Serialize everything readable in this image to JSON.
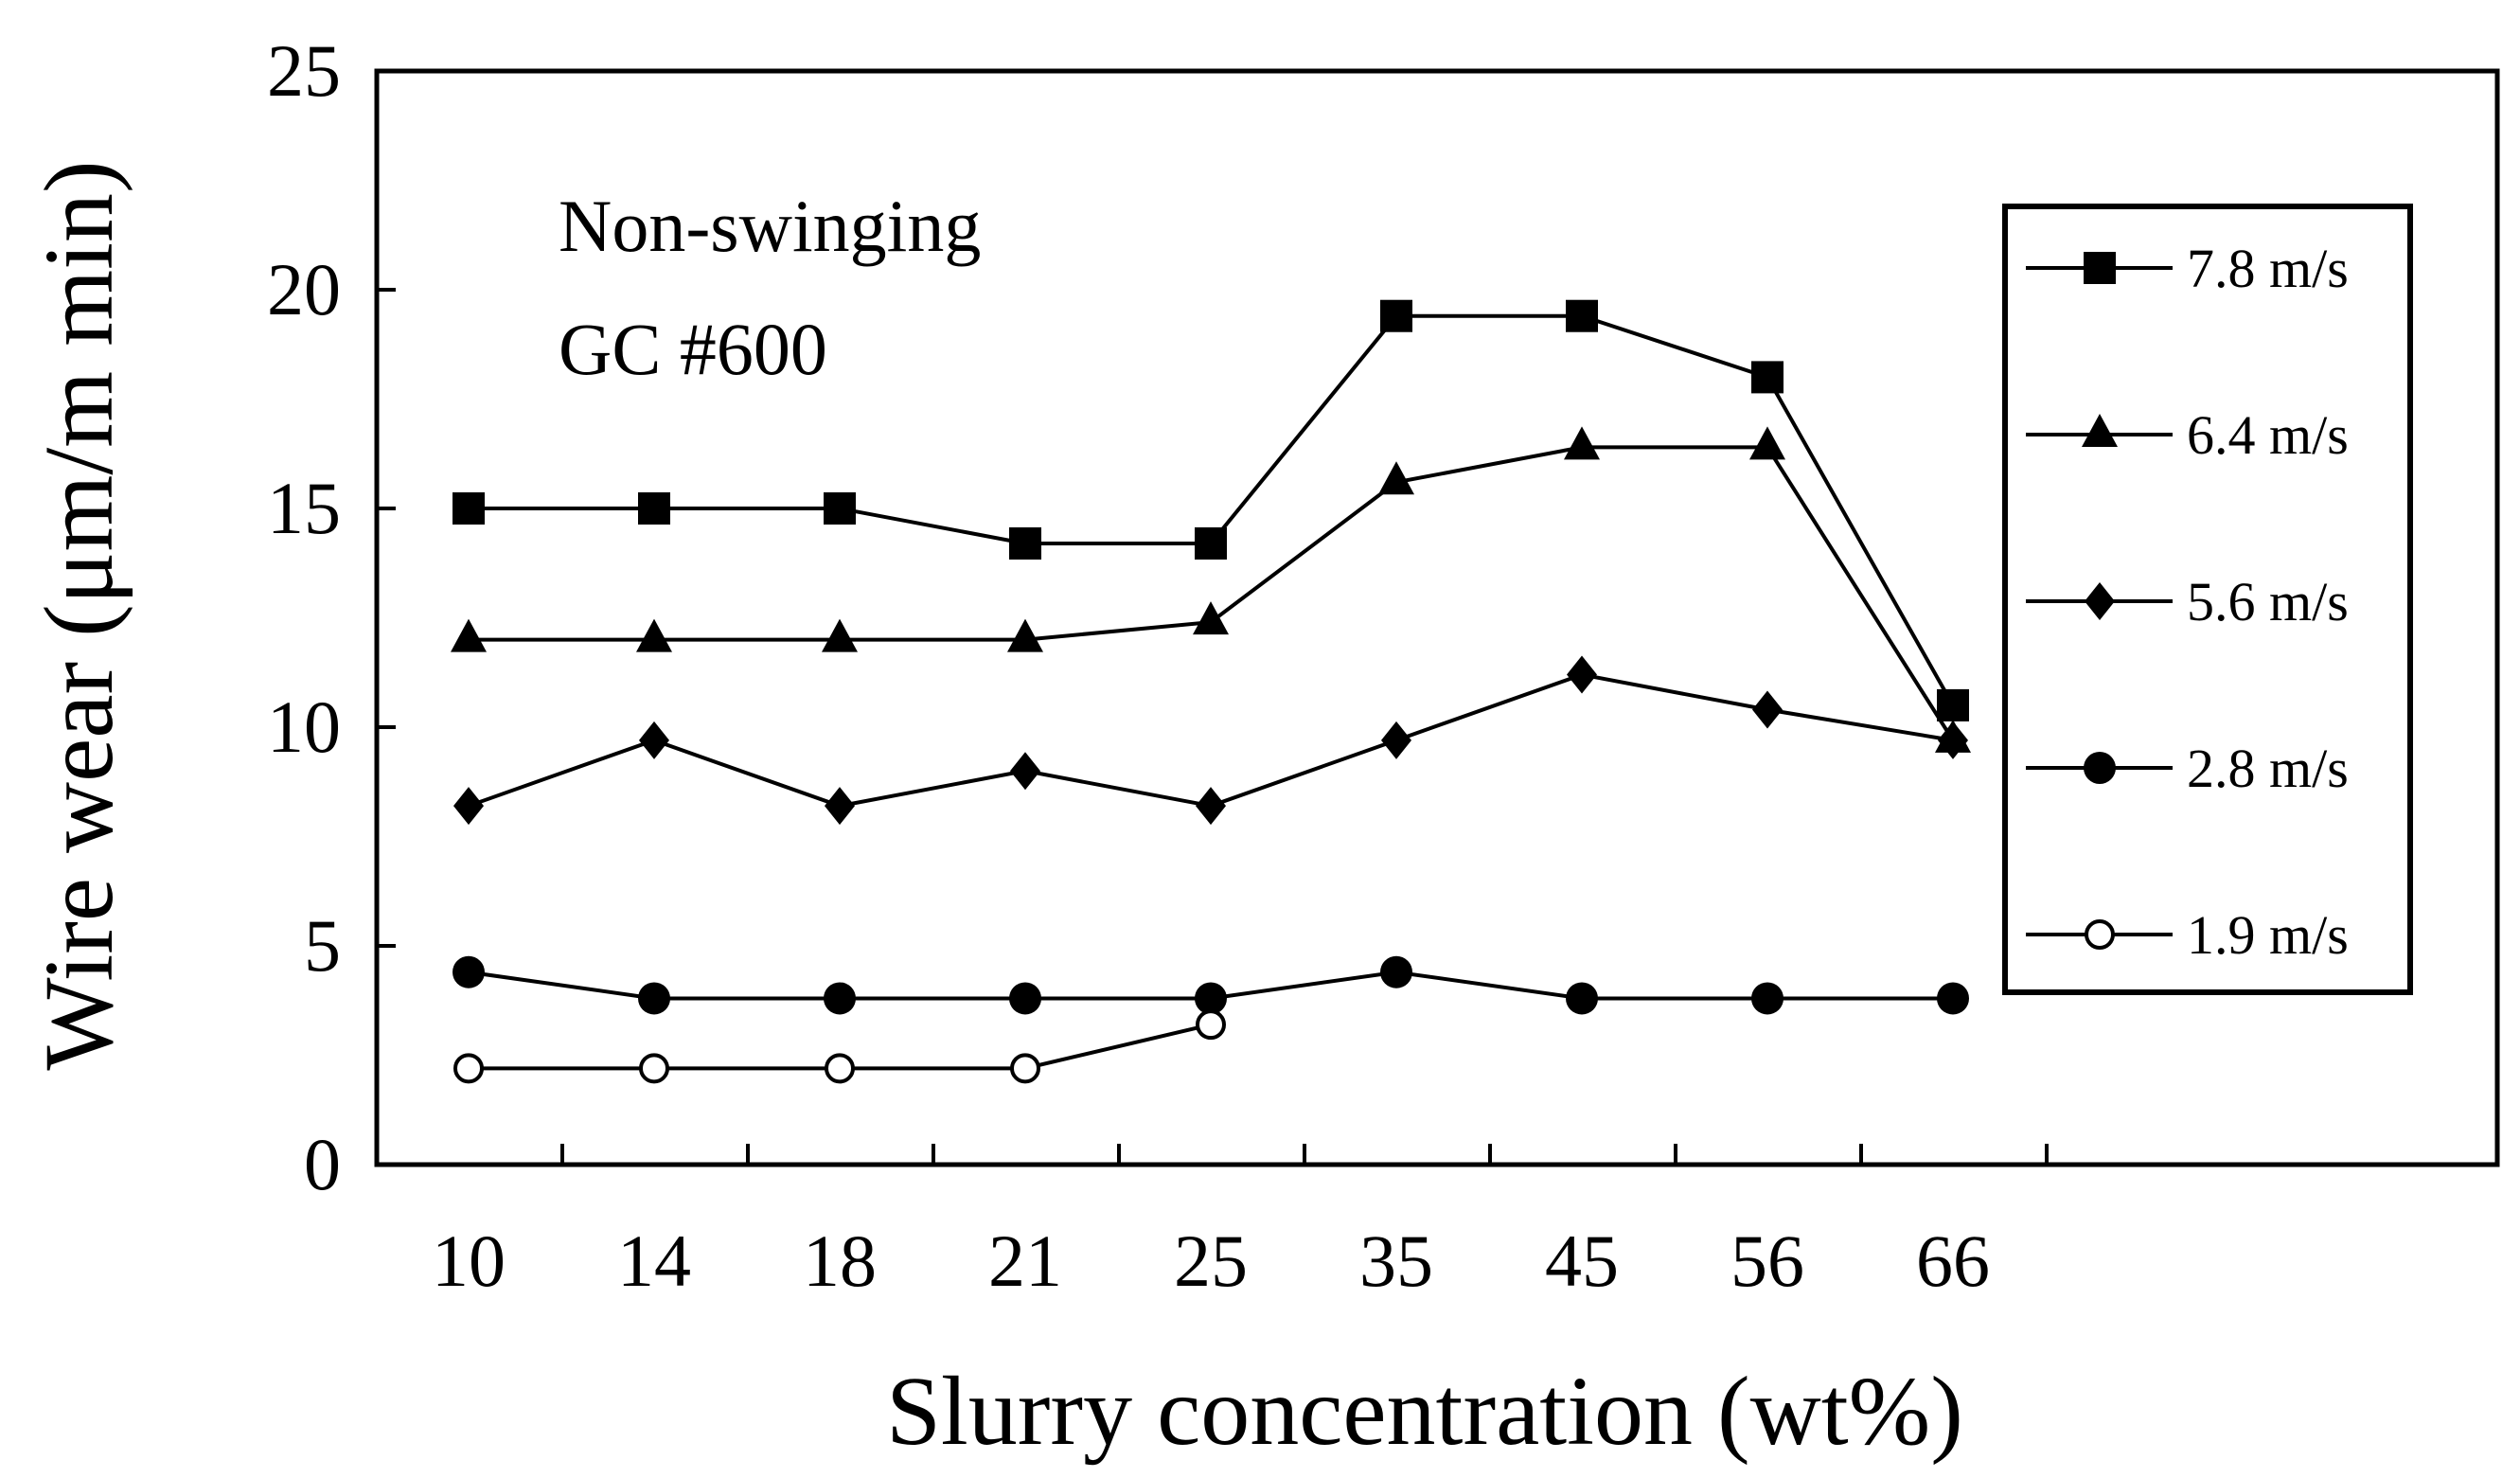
{
  "chart_data": {
    "type": "line",
    "title": "",
    "xlabel": "Slurry concentration (wt%)",
    "ylabel": "Wire wear (μm/m min)",
    "categories": [
      "10",
      "14",
      "18",
      "21",
      "25",
      "35",
      "45",
      "56",
      "66"
    ],
    "ylim": [
      0,
      25
    ],
    "yticks": [
      0,
      5,
      10,
      15,
      20,
      25
    ],
    "ytick_labels": [
      "0",
      "5",
      "10",
      "15",
      "20",
      "25"
    ],
    "grid": false,
    "legend_position": "right",
    "annotations": [
      "Non-swinging",
      "GC #600"
    ],
    "series": [
      {
        "name": "7.8 m/s",
        "marker": "square",
        "values": [
          15.0,
          15.0,
          15.0,
          14.2,
          14.2,
          19.4,
          19.4,
          18.0,
          10.5
        ]
      },
      {
        "name": "6.4 m/s",
        "marker": "triangle",
        "values": [
          12.0,
          12.0,
          12.0,
          12.0,
          12.4,
          15.6,
          16.4,
          16.4,
          9.7
        ]
      },
      {
        "name": "5.6 m/s",
        "marker": "diamond",
        "values": [
          8.2,
          9.7,
          8.2,
          9.0,
          8.2,
          9.7,
          11.2,
          10.4,
          9.7
        ]
      },
      {
        "name": "2.8 m/s",
        "marker": "circle",
        "values": [
          4.4,
          3.8,
          3.8,
          3.8,
          3.8,
          4.4,
          3.8,
          3.8,
          3.8
        ]
      },
      {
        "name": "1.9 m/s",
        "marker": "open-circle",
        "values": [
          2.2,
          2.2,
          2.2,
          2.2,
          3.2,
          null,
          null,
          null,
          null
        ]
      }
    ]
  }
}
